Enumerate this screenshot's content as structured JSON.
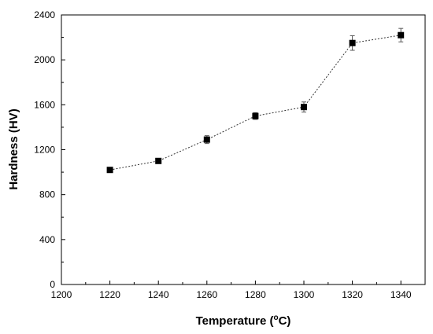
{
  "chart_data": {
    "type": "line",
    "title": "",
    "xlabel": {
      "main": "Temperature (",
      "degree": "o",
      "unit": "C)"
    },
    "ylabel": "Hardness (HV)",
    "xlim": [
      1200,
      1350
    ],
    "ylim": [
      0,
      2400
    ],
    "xticks": [
      "1200",
      "1220",
      "1240",
      "1260",
      "1280",
      "1300",
      "1320",
      "1340"
    ],
    "yticks": [
      "0",
      "400",
      "800",
      "1200",
      "1600",
      "2000",
      "2400"
    ],
    "series": [
      {
        "x": [
          1220,
          1240,
          1260,
          1280,
          1300,
          1320,
          1340
        ],
        "y": [
          1020,
          1100,
          1290,
          1500,
          1580,
          2150,
          2220
        ],
        "error": [
          15,
          15,
          35,
          30,
          45,
          65,
          60
        ]
      }
    ],
    "marker": "square",
    "line_style": "dotted",
    "grid": false,
    "legend": "none"
  }
}
